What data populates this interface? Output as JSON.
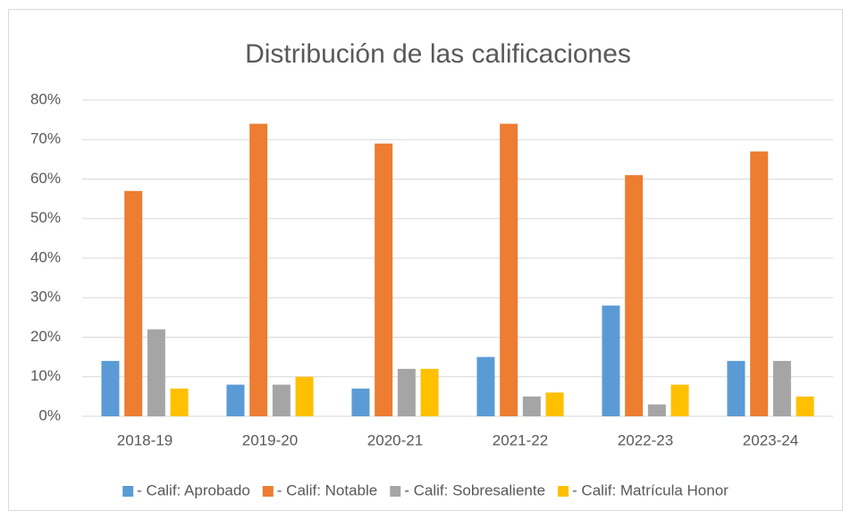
{
  "chart_data": {
    "type": "bar",
    "title": "Distribución de las calificaciones",
    "categories": [
      "2018-19",
      "2019-20",
      "2020-21",
      "2021-22",
      "2022-23",
      "2023-24"
    ],
    "series": [
      {
        "name": "- Calif: Aprobado",
        "color": "#5b9bd5",
        "values": [
          14,
          8,
          7,
          15,
          28,
          14
        ]
      },
      {
        "name": "- Calif: Notable",
        "color": "#ed7d31",
        "values": [
          57,
          74,
          69,
          74,
          61,
          67
        ]
      },
      {
        "name": "- Calif: Sobresaliente",
        "color": "#a5a5a5",
        "values": [
          22,
          8,
          12,
          5,
          3,
          14
        ]
      },
      {
        "name": "- Calif: Matrícula Honor",
        "color": "#ffc000",
        "values": [
          7,
          10,
          12,
          6,
          8,
          5
        ]
      }
    ],
    "ylim": [
      0,
      80
    ],
    "yticks": [
      {
        "value": 0,
        "label": "0%"
      },
      {
        "value": 10,
        "label": "10%"
      },
      {
        "value": 20,
        "label": "20%"
      },
      {
        "value": 30,
        "label": "30%"
      },
      {
        "value": 40,
        "label": "40%"
      },
      {
        "value": 50,
        "label": "50%"
      },
      {
        "value": 60,
        "label": "60%"
      },
      {
        "value": 70,
        "label": "70%"
      },
      {
        "value": 80,
        "label": "80%"
      }
    ],
    "grid": true,
    "legend": "bottom"
  }
}
